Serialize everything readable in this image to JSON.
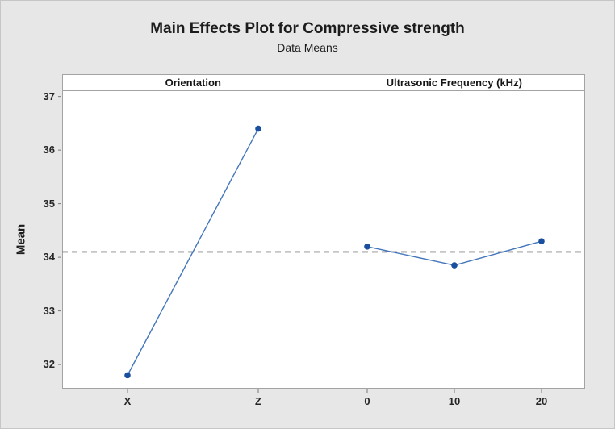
{
  "figure": {
    "background": "#e7e7e7",
    "border_color": "#c6c6c6"
  },
  "chart_data": {
    "type": "line",
    "title": "Main Effects Plot for Compressive strength",
    "subtitle": "Data Means",
    "ylabel": "Mean",
    "ylim": [
      31.55,
      37.1
    ],
    "yticks": [
      32,
      33,
      34,
      35,
      36,
      37
    ],
    "grid": false,
    "legend": "none",
    "reference_line": {
      "value": 34.1,
      "style": "dashed"
    },
    "panels": [
      {
        "label": "Orientation",
        "categories": [
          "X",
          "Z"
        ],
        "values": [
          31.8,
          36.4
        ]
      },
      {
        "label": "Ultrasonic Frequency (kHz)",
        "categories": [
          "0",
          "10",
          "20"
        ],
        "values": [
          34.2,
          33.85,
          34.3
        ]
      }
    ],
    "colors": {
      "marker": "#1a4e9e",
      "line": "#4376bb",
      "reference": "#8d8d8d",
      "panel_border": "#a3a3a3",
      "tick": "#7a7a7a",
      "text": "#1c1c1c"
    }
  }
}
